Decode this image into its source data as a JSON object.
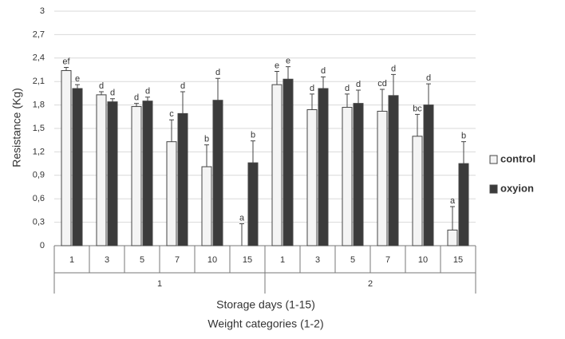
{
  "chart_data": {
    "type": "bar",
    "x_label": [
      "Storage days (1-15)",
      "Weight categories (1-2)"
    ],
    "y_label": "Resistance (Kg)",
    "categories": [
      "1",
      "3",
      "5",
      "7",
      "10",
      "15",
      "1",
      "3",
      "5",
      "7",
      "10",
      "15"
    ],
    "groups": [
      "1",
      "2"
    ],
    "ylim": [
      0,
      3
    ],
    "yticks": [
      0,
      {
        "value": 0.3,
        "label": "0,3"
      },
      {
        "value": 0.6,
        "label": "0,6"
      },
      {
        "value": 0.9,
        "label": "0,9"
      },
      {
        "value": 1.2,
        "label": "1,2"
      },
      {
        "value": 1.5,
        "label": "1,5"
      },
      {
        "value": 1.8,
        "label": "1,8"
      },
      {
        "value": 2.1,
        "label": "2,1"
      },
      {
        "value": 2.4,
        "label": "2,4"
      },
      {
        "value": 2.7,
        "label": "2,7"
      },
      3
    ],
    "grid": true,
    "legend": "right",
    "series": [
      {
        "name": "control",
        "color": "#f4f4f4",
        "values": [
          2.24,
          1.93,
          1.78,
          1.33,
          1.01,
          0,
          2.06,
          1.74,
          1.77,
          1.72,
          1.4,
          0.2
        ],
        "errors": [
          0.04,
          0.04,
          0.04,
          0.28,
          0.28,
          0.28,
          0.17,
          0.2,
          0.17,
          0.28,
          0.28,
          0.3
        ],
        "letters": [
          "ef",
          "d",
          "d",
          "c",
          "b",
          "a",
          "e",
          "d",
          "d",
          "cd",
          "bc",
          "a"
        ]
      },
      {
        "name": "oxyion",
        "color": "#3b3b3b",
        "values": [
          2.01,
          1.84,
          1.85,
          1.69,
          1.86,
          1.06,
          2.13,
          2.01,
          1.82,
          1.92,
          1.8,
          1.05
        ],
        "errors": [
          0.05,
          0.04,
          0.05,
          0.28,
          0.28,
          0.28,
          0.16,
          0.15,
          0.17,
          0.27,
          0.27,
          0.28
        ],
        "letters": [
          "e",
          "d",
          "d",
          "d",
          "d",
          "b",
          "e",
          "d",
          "d",
          "d",
          "d",
          "b"
        ]
      }
    ]
  }
}
